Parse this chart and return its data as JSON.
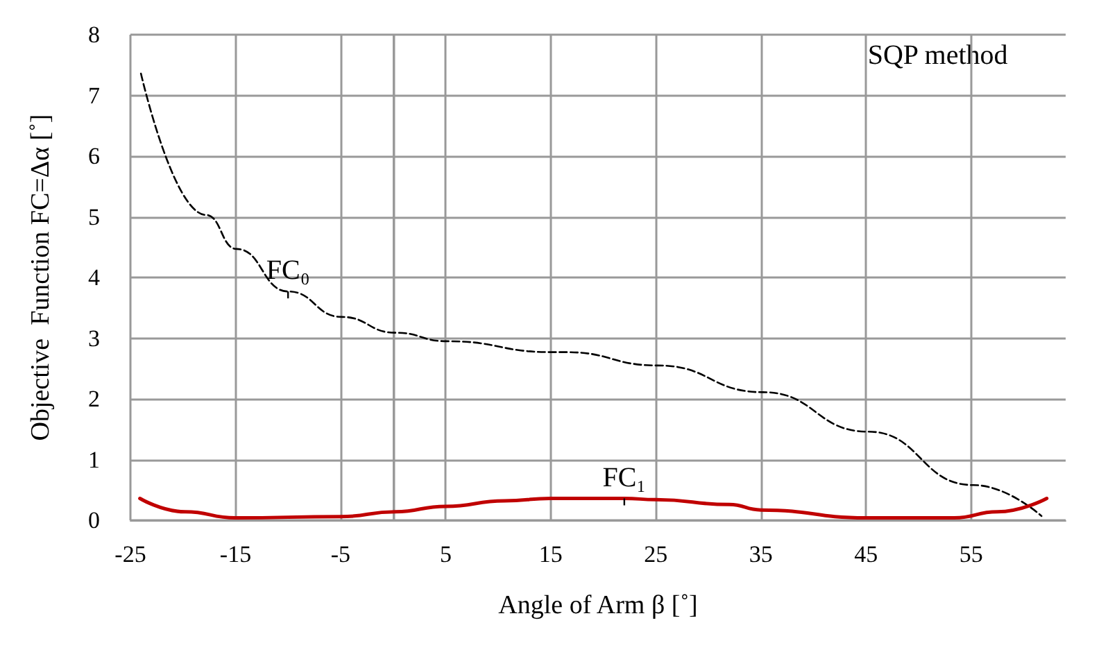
{
  "chart_data": {
    "type": "line",
    "xlabel": "Angle of Arm β [˚]",
    "ylabel": "Objective  Function FC=Δα [˚]",
    "annotations": [
      "SQP method"
    ],
    "xlim": [
      -25,
      64
    ],
    "xticks": [
      -25,
      -15,
      -5,
      {
        "value": 0,
        "label": null
      },
      5,
      15,
      25,
      35,
      45,
      55
    ],
    "ylim": [
      0,
      8
    ],
    "yticks": [
      0,
      1,
      2,
      3,
      4,
      5,
      6,
      7,
      8
    ],
    "grid": true,
    "marker": "none",
    "series": [
      {
        "name": "FC₀",
        "color": "#000000",
        "line_style": "dashed",
        "x": [
          -24,
          -17.8,
          -14.9,
          -10,
          -4.9,
          0.2,
          5.1,
          15.1,
          16.4,
          25.2,
          35.2,
          45.2,
          55.2,
          61.7
        ],
        "values": [
          7.36,
          5.03,
          4.47,
          3.77,
          3.35,
          3.09,
          2.95,
          2.77,
          2.77,
          2.55,
          2.11,
          1.46,
          0.58,
          0.07
        ]
      },
      {
        "name": "FC₁",
        "color": "#c00000",
        "line_style": "solid",
        "x": [
          -24.1,
          -19.8,
          -15,
          -5,
          0.2,
          5,
          10.6,
          15,
          22,
          25,
          32,
          35,
          45,
          53.4,
          57.5,
          62.2
        ],
        "values": [
          0.36,
          0.14,
          0.04,
          0.06,
          0.14,
          0.23,
          0.32,
          0.36,
          0.36,
          0.34,
          0.26,
          0.17,
          0.04,
          0.04,
          0.14,
          0.36
        ]
      }
    ]
  }
}
